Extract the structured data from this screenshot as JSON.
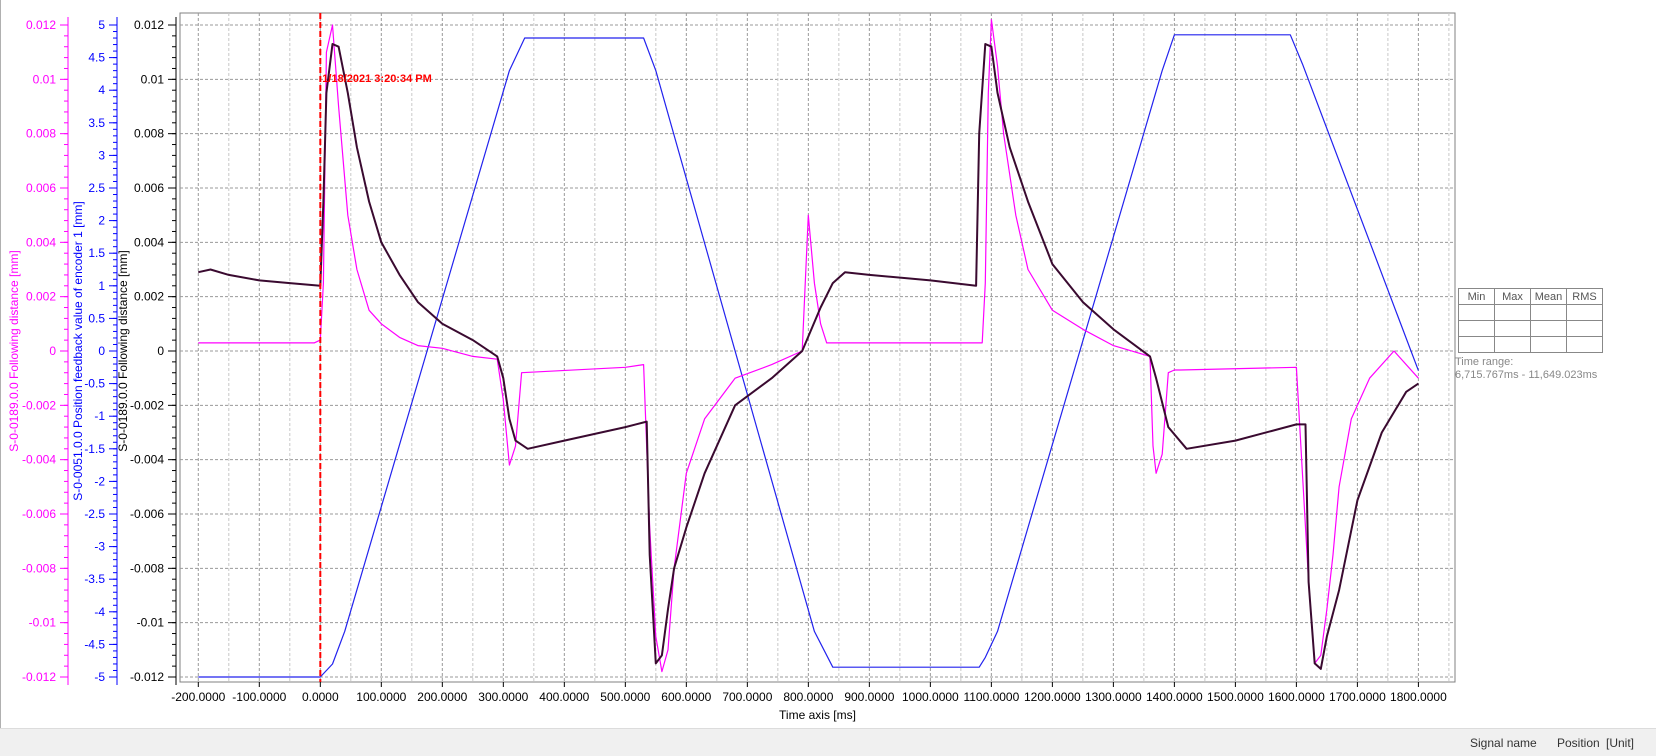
{
  "chart_data": {
    "type": "line",
    "xlabel": "Time axis [ms]",
    "xlim": [
      -230,
      1860
    ],
    "x_ticks": [
      -200,
      -100,
      0,
      100,
      200,
      300,
      400,
      500,
      600,
      700,
      800,
      900,
      1000,
      1100,
      1200,
      1300,
      1400,
      1500,
      1600,
      1700,
      1800
    ],
    "x_tick_labels": [
      "-200.0000",
      "-100.0000",
      "0.0000",
      "100.0000",
      "200.0000",
      "300.0000",
      "400.0000",
      "500.0000",
      "600.0000",
      "700.0000",
      "800.0000",
      "900.0000",
      "1000.0000",
      "1100.0000",
      "1200.0000",
      "1300.0000",
      "1400.0000",
      "1500.0000",
      "1600.0000",
      "1700.0000",
      "1800.0000"
    ],
    "grid": true,
    "axes": [
      {
        "label": "S-0-0189.0.0 Following distance [mm]",
        "color": "#ff00ff",
        "ylim": [
          -0.012,
          0.012
        ],
        "ticks": [
          -0.012,
          -0.01,
          -0.008,
          -0.006,
          -0.004,
          -0.002,
          0,
          0.002,
          0.004,
          0.006,
          0.008,
          0.01,
          0.012
        ]
      },
      {
        "label": "S-0-0051.0.0 Position feedback value of encoder 1 [mm]",
        "color": "#0000ff",
        "ylim": [
          -5,
          5
        ],
        "ticks": [
          -5,
          -4.5,
          -4,
          -3.5,
          -3,
          -2.5,
          -2,
          -1.5,
          -1,
          -0.5,
          0,
          0.5,
          1,
          1.5,
          2,
          2.5,
          3,
          3.5,
          4,
          4.5,
          5
        ]
      },
      {
        "label": "S-0-0189.0.0 Following distance [mm]",
        "color": "#000000",
        "ylim": [
          -0.012,
          0.012
        ],
        "ticks": [
          -0.012,
          -0.01,
          -0.008,
          -0.006,
          -0.004,
          -0.002,
          0,
          0.002,
          0.004,
          0.006,
          0.008,
          0.01,
          0.012
        ]
      }
    ],
    "series": [
      {
        "axis": 1,
        "color": "#2222ee",
        "x": [
          -200,
          0,
          20,
          40,
          310,
          335,
          530,
          550,
          810,
          840,
          1080,
          1090,
          1110,
          1380,
          1400,
          1590,
          1610,
          1800
        ],
        "y": [
          -5,
          -5,
          -4.8,
          -4.3,
          4.3,
          4.8,
          4.8,
          4.3,
          -4.3,
          -4.85,
          -4.85,
          -4.7,
          -4.3,
          4.3,
          4.85,
          4.85,
          4.4,
          -0.3
        ]
      },
      {
        "axis": 0,
        "color": "#ff00ff",
        "x": [
          -200,
          -10,
          0,
          5,
          10,
          20,
          30,
          45,
          60,
          80,
          100,
          130,
          160,
          200,
          250,
          290,
          300,
          310,
          320,
          330,
          500,
          530,
          540,
          550,
          560,
          570,
          580,
          600,
          630,
          680,
          740,
          790,
          800,
          810,
          820,
          830,
          840,
          850,
          1060,
          1085,
          1090,
          1095,
          1100,
          1110,
          1120,
          1140,
          1160,
          1200,
          1250,
          1300,
          1360,
          1365,
          1370,
          1380,
          1390,
          1400,
          1410,
          1600,
          1620,
          1630,
          1640,
          1650,
          1660,
          1670,
          1690,
          1720,
          1760,
          1800
        ],
        "y": [
          0.0003,
          0.0003,
          0.0004,
          0.0025,
          0.011,
          0.012,
          0.009,
          0.005,
          0.003,
          0.0015,
          0.001,
          0.0005,
          0.0002,
          0.0001,
          -0.0002,
          -0.0003,
          -0.0018,
          -0.0042,
          -0.0035,
          -0.0008,
          -0.0006,
          -0.0005,
          -0.0065,
          -0.0105,
          -0.0118,
          -0.011,
          -0.008,
          -0.0045,
          -0.0025,
          -0.001,
          -0.0005,
          0,
          0.005,
          0.0025,
          0.001,
          0.0003,
          0.0003,
          0.0003,
          0.0003,
          0.0003,
          0.0025,
          0.0095,
          0.0122,
          0.0105,
          0.008,
          0.005,
          0.003,
          0.0015,
          0.0008,
          0.0002,
          -0.0002,
          -0.0035,
          -0.0045,
          -0.0038,
          -0.0008,
          -0.0007,
          -0.0007,
          -0.0006,
          -0.0085,
          -0.0115,
          -0.0112,
          -0.0095,
          -0.0075,
          -0.005,
          -0.0025,
          -0.001,
          0,
          -0.001
        ]
      },
      {
        "axis": 2,
        "color": "#3a0a30",
        "x": [
          -200,
          -180,
          -150,
          -100,
          -50,
          0,
          5,
          10,
          20,
          30,
          45,
          60,
          80,
          100,
          130,
          160,
          200,
          250,
          290,
          300,
          310,
          320,
          340,
          400,
          500,
          535,
          540,
          550,
          560,
          570,
          580,
          600,
          630,
          680,
          740,
          790,
          820,
          840,
          860,
          900,
          1000,
          1075,
          1080,
          1090,
          1100,
          1110,
          1130,
          1160,
          1200,
          1250,
          1300,
          1360,
          1370,
          1390,
          1420,
          1500,
          1600,
          1615,
          1620,
          1630,
          1640,
          1650,
          1670,
          1700,
          1740,
          1780,
          1800
        ],
        "y": [
          0.0029,
          0.003,
          0.0028,
          0.0026,
          0.0025,
          0.0024,
          0.0055,
          0.0095,
          0.0113,
          0.0112,
          0.0095,
          0.0075,
          0.0055,
          0.004,
          0.0028,
          0.0018,
          0.001,
          0.0004,
          -0.0002,
          -0.001,
          -0.0025,
          -0.0033,
          -0.0036,
          -0.0033,
          -0.0028,
          -0.0026,
          -0.0075,
          -0.0115,
          -0.0112,
          -0.0095,
          -0.008,
          -0.0065,
          -0.0045,
          -0.002,
          -0.001,
          0,
          0.0016,
          0.0025,
          0.0029,
          0.0028,
          0.0026,
          0.0024,
          0.008,
          0.0113,
          0.0112,
          0.0095,
          0.0075,
          0.0055,
          0.0032,
          0.0018,
          0.0008,
          -0.0002,
          -0.001,
          -0.0028,
          -0.0036,
          -0.0033,
          -0.0027,
          -0.0027,
          -0.0085,
          -0.0115,
          -0.0117,
          -0.0105,
          -0.0088,
          -0.0055,
          -0.003,
          -0.0015,
          -0.0012
        ]
      }
    ],
    "cursor": {
      "x": 0,
      "label": "1/18/2021 3:20:34 PM",
      "color": "#ff0000"
    }
  },
  "stats_headers": [
    "Min",
    "Max",
    "Mean",
    "RMS"
  ],
  "time_range": {
    "label": "Time range:",
    "value": "6,715.767ms - 11,649.023ms"
  },
  "status_bar": {
    "signal_name": "Signal name",
    "position": "Position",
    "unit": "[Unit]"
  }
}
